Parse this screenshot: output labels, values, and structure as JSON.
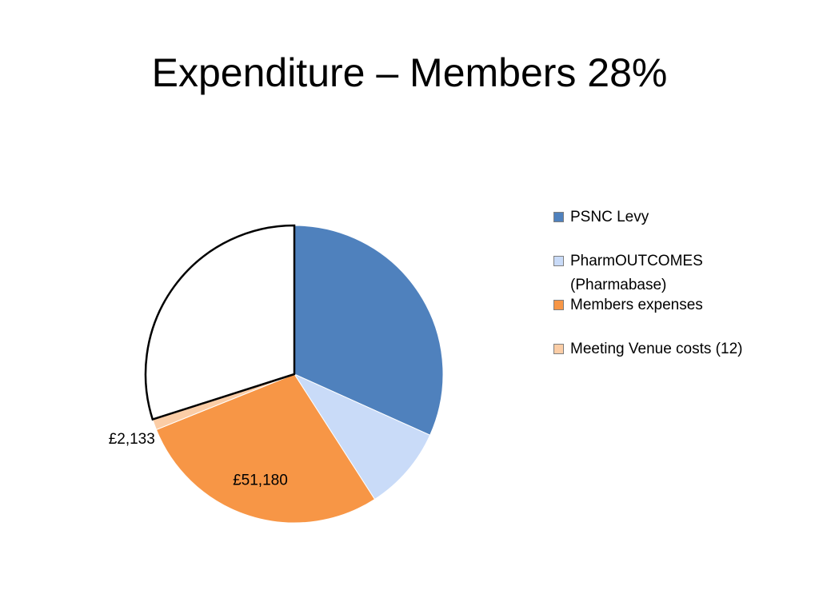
{
  "chart_data": {
    "type": "pie",
    "title": "Expenditure – Members 28%",
    "categories": [
      "PSNC Levy",
      "PharmOUTCOMES (Pharmabase)",
      "Members expenses",
      "Meeting Venue costs (12)",
      null
    ],
    "values": [
      58000,
      16800,
      51180,
      2133,
      54700
    ],
    "value_labels": [
      null,
      null,
      "£51,180",
      "£2,133",
      null
    ],
    "colors": [
      "#4f81bd",
      "#c9dbf8",
      "#f79646",
      "#fbcda6",
      "#ffffff"
    ],
    "legend": "right"
  }
}
